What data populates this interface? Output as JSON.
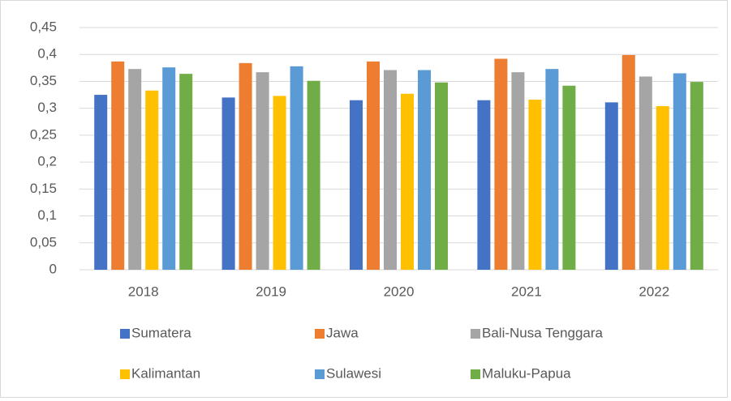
{
  "chart_data": {
    "type": "bar",
    "categories": [
      "2018",
      "2019",
      "2020",
      "2021",
      "2022"
    ],
    "series": [
      {
        "name": "Sumatera",
        "color": "#4472c4",
        "values": [
          0.325,
          0.32,
          0.315,
          0.315,
          0.311
        ]
      },
      {
        "name": "Jawa",
        "color": "#ed7d31",
        "values": [
          0.387,
          0.384,
          0.387,
          0.392,
          0.399
        ]
      },
      {
        "name": "Bali-Nusa Tenggara",
        "color": "#a5a5a5",
        "values": [
          0.373,
          0.367,
          0.371,
          0.367,
          0.359
        ]
      },
      {
        "name": "Kalimantan",
        "color": "#ffc000",
        "values": [
          0.333,
          0.323,
          0.327,
          0.316,
          0.304
        ]
      },
      {
        "name": "Sulawesi",
        "color": "#5b9bd5",
        "values": [
          0.376,
          0.378,
          0.371,
          0.373,
          0.365
        ]
      },
      {
        "name": "Maluku-Papua",
        "color": "#70ad47",
        "values": [
          0.364,
          0.351,
          0.348,
          0.342,
          0.349
        ]
      }
    ],
    "ylim": [
      0,
      0.45
    ],
    "yticks": [
      0,
      {
        "value": 0.05,
        "label": "0,05"
      },
      {
        "value": 0.1,
        "label": "0,1"
      },
      {
        "value": 0.15,
        "label": "0,15"
      },
      {
        "value": 0.2,
        "label": "0,2"
      },
      {
        "value": 0.25,
        "label": "0,25"
      },
      {
        "value": 0.3,
        "label": "0,3"
      },
      {
        "value": 0.35,
        "label": "0,35"
      },
      {
        "value": 0.4,
        "label": "0,4"
      },
      {
        "value": 0.45,
        "label": "0,45"
      }
    ],
    "grid": true,
    "legend": "bottom"
  }
}
